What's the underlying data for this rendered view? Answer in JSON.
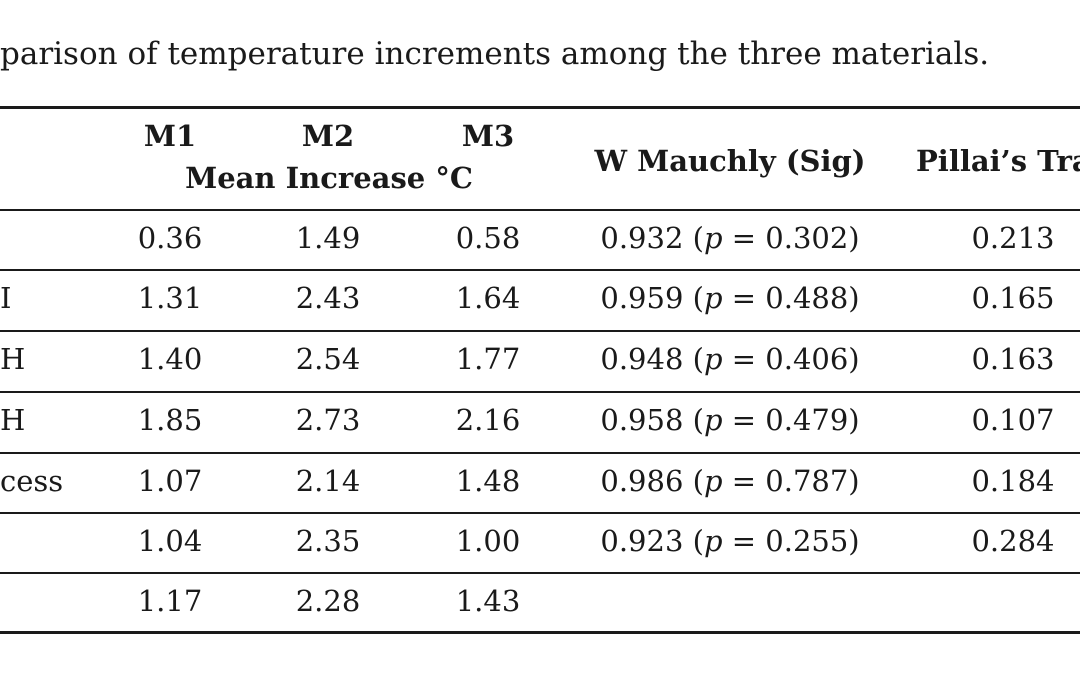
{
  "caption": "parison of temperature increments among the three materials.",
  "header": {
    "m1": "M1",
    "m2": "M2",
    "m3": "M3",
    "mean_increase": "Mean Increase °C",
    "w_mauchly": "W Mauchly (Sig)",
    "pillai": "Pillai’s Tra"
  },
  "rows": [
    {
      "label": "",
      "m1": "0.36",
      "m2": "1.49",
      "m3": "0.58",
      "w": "0.932",
      "p": "0.302",
      "pillai": "0.213"
    },
    {
      "label": "I",
      "m1": "1.31",
      "m2": "2.43",
      "m3": "1.64",
      "w": "0.959",
      "p": "0.488",
      "pillai": "0.165"
    },
    {
      "label": "H",
      "m1": "1.40",
      "m2": "2.54",
      "m3": "1.77",
      "w": "0.948",
      "p": "0.406",
      "pillai": "0.163"
    },
    {
      "label": "H",
      "m1": "1.85",
      "m2": "2.73",
      "m3": "2.16",
      "w": "0.958",
      "p": "0.479",
      "pillai": "0.107"
    },
    {
      "label": "cess",
      "m1": "1.07",
      "m2": "2.14",
      "m3": "1.48",
      "w": "0.986",
      "p": "0.787",
      "pillai": "0.184"
    },
    {
      "label": "",
      "m1": "1.04",
      "m2": "2.35",
      "m3": "1.00",
      "w": "0.923",
      "p": "0.255",
      "pillai": "0.284"
    },
    {
      "label": "",
      "m1": "1.17",
      "m2": "2.28",
      "m3": "1.43",
      "w": "",
      "p": "",
      "pillai": ""
    }
  ]
}
